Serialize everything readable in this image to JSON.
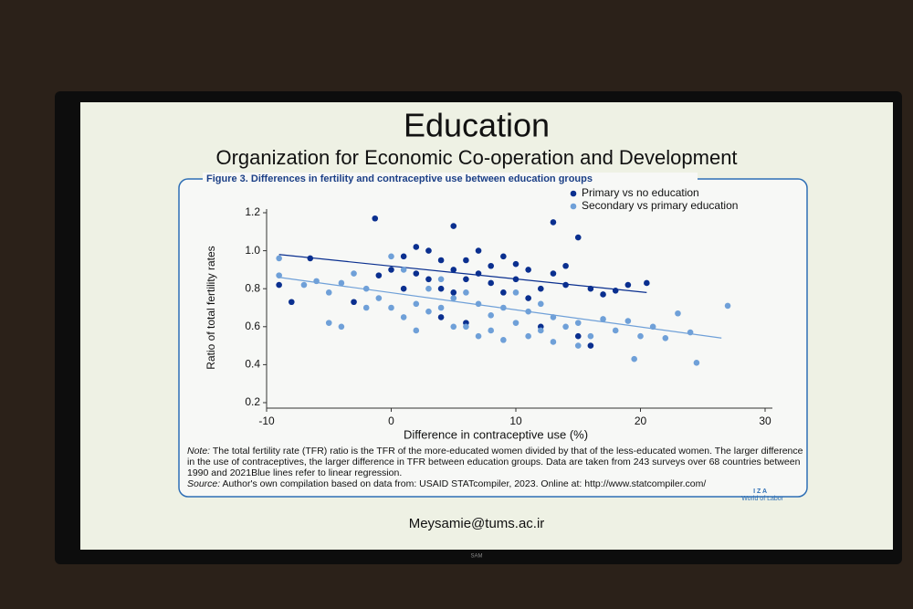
{
  "slide": {
    "title": "Education",
    "subtitle": "Organization for Economic Co-operation and Development",
    "email": "Meysamie@tums.ac.ir",
    "bezel_logo": "SAM"
  },
  "chart_data": {
    "type": "scatter",
    "title": "Figure 3. Differences in fertility and contraceptive use between education groups",
    "x_label": "Difference in contraceptive use (%)",
    "y_label": "Ratio of total fertility rates",
    "xlim": [
      -10,
      30
    ],
    "xticks": [
      -10,
      0,
      10,
      20,
      30
    ],
    "ylim": [
      0.2,
      1.2
    ],
    "yticks": [
      0.2,
      0.4,
      0.6,
      0.8,
      {
        "value": 1,
        "label": "1.0"
      },
      1.2
    ],
    "legend": "upper right",
    "series": [
      {
        "name": "Primary vs no education",
        "color": "#0a2f8f",
        "x": [
          -1.3,
          5,
          13,
          15,
          -9,
          -8,
          -6.5,
          20.5,
          16,
          15,
          12,
          19,
          1,
          2,
          3,
          4,
          5,
          6,
          7,
          8,
          9,
          10,
          11,
          12,
          13,
          14,
          3,
          4,
          5,
          6,
          7,
          8,
          2,
          1,
          -1,
          0,
          9,
          10,
          11,
          14,
          16,
          17,
          18,
          -3,
          4,
          6
        ],
        "values": [
          1.17,
          1.13,
          1.15,
          1.07,
          0.82,
          0.73,
          0.96,
          0.83,
          0.5,
          0.55,
          0.6,
          0.82,
          0.97,
          1.02,
          1.0,
          0.95,
          0.9,
          0.85,
          0.88,
          0.92,
          0.97,
          0.85,
          0.9,
          0.8,
          0.88,
          0.82,
          0.85,
          0.8,
          0.78,
          0.95,
          1.0,
          0.83,
          0.88,
          0.8,
          0.87,
          0.9,
          0.78,
          0.93,
          0.75,
          0.92,
          0.8,
          0.77,
          0.79,
          0.73,
          0.65,
          0.62
        ],
        "fit": {
          "x": [
            -9,
            20.5
          ],
          "values": [
            0.98,
            0.78
          ]
        }
      },
      {
        "name": "Secondary vs primary education",
        "color": "#6fa0d8",
        "x": [
          -9,
          -9,
          -7,
          -6,
          -5,
          -4,
          -3,
          -2,
          -1,
          0,
          0,
          1,
          2,
          3,
          4,
          5,
          6,
          7,
          8,
          9,
          10,
          11,
          12,
          13,
          14,
          15,
          16,
          17,
          18,
          19,
          20,
          21,
          22,
          23,
          24,
          24.5,
          19.5,
          27,
          -5,
          -4,
          2,
          3,
          5,
          7,
          8,
          9,
          11,
          13,
          15,
          10,
          12,
          6,
          4,
          1,
          -2
        ],
        "values": [
          0.96,
          0.87,
          0.82,
          0.84,
          0.78,
          0.83,
          0.88,
          0.8,
          0.75,
          0.7,
          0.97,
          0.65,
          0.72,
          0.68,
          0.7,
          0.75,
          0.6,
          0.72,
          0.66,
          0.7,
          0.62,
          0.68,
          0.58,
          0.65,
          0.6,
          0.62,
          0.55,
          0.64,
          0.58,
          0.63,
          0.55,
          0.6,
          0.54,
          0.67,
          0.57,
          0.41,
          0.43,
          0.71,
          0.62,
          0.6,
          0.58,
          0.8,
          0.6,
          0.55,
          0.58,
          0.53,
          0.55,
          0.52,
          0.5,
          0.78,
          0.72,
          0.78,
          0.85,
          0.9,
          0.7
        ],
        "fit": {
          "x": [
            -9,
            26.5
          ],
          "values": [
            0.86,
            0.54
          ]
        }
      }
    ],
    "note_label": "Note:",
    "note": "The total fertility rate (TFR) ratio is the TFR of the more-educated women divided by that of the less-educated women. The larger difference in the use of contraceptives, the larger difference in TFR between education groups. Data are taken from 243 surveys over 68 countries between 1990 and 2021Blue lines refer to linear regression.",
    "source_label": "Source:",
    "source": "Author's own compilation based on data from: USAID STATcompiler, 2023. Online at: http://www.statcompiler.com/",
    "brand_top": "I Z A",
    "brand_bottom": "World of Labor"
  }
}
